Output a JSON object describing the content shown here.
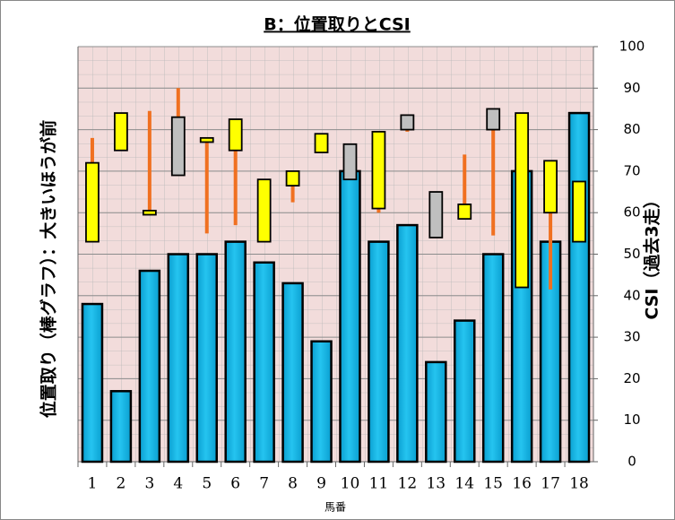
{
  "chart_data": {
    "type": "bar+candlestick",
    "title": "B：位置取りとCSI",
    "y_label": "位置取り（棒グラフ）：大きいほうが前",
    "y2_label": "CSI（過去3走）",
    "x_label": "馬番",
    "categories": [
      "1",
      "2",
      "3",
      "4",
      "5",
      "6",
      "7",
      "8",
      "9",
      "10",
      "11",
      "12",
      "13",
      "14",
      "15",
      "16",
      "17",
      "18"
    ],
    "bar_color": "#00b0f0",
    "values": [
      38,
      17,
      46,
      50,
      50,
      53,
      48,
      43,
      29,
      70,
      53,
      57,
      24,
      34,
      50,
      70,
      53,
      84
    ],
    "box_low": [
      53,
      75,
      59.5,
      69,
      77,
      75,
      53,
      66.5,
      74.5,
      68,
      61,
      80,
      54,
      58.5,
      80,
      42,
      60,
      53
    ],
    "box_high": [
      72,
      84,
      60.5,
      83,
      78,
      82.5,
      68,
      70,
      79,
      76.5,
      79.5,
      83.5,
      65,
      62,
      85,
      84,
      72.5,
      67.5
    ],
    "low": [
      53,
      75,
      59.5,
      69,
      55,
      57,
      53,
      62.5,
      74.5,
      68,
      60,
      79.5,
      54,
      58.5,
      54.5,
      42,
      41.5,
      53
    ],
    "high": [
      78,
      84,
      84.5,
      90,
      78,
      82.5,
      68,
      70,
      79,
      76.5,
      79.5,
      83.5,
      65,
      74,
      85,
      84,
      72.5,
      67.5
    ],
    "box_colors": [
      "#ffff00",
      "#ffff00",
      "#ffff00",
      "#bfbfbf",
      "#ffff00",
      "#ffff00",
      "#ffff00",
      "#ffff00",
      "#ffff00",
      "#bfbfbf",
      "#ffff00",
      "#bfbfbf",
      "#bfbfbf",
      "#ffff00",
      "#bfbfbf",
      "#ffff00",
      "#ffff00",
      "#ffff00"
    ],
    "whisker_color": "#f07020",
    "ylim": [
      0,
      100
    ],
    "yticks": [
      0,
      10,
      20,
      30,
      40,
      50,
      60,
      70,
      80,
      90,
      100
    ],
    "grid": true
  }
}
